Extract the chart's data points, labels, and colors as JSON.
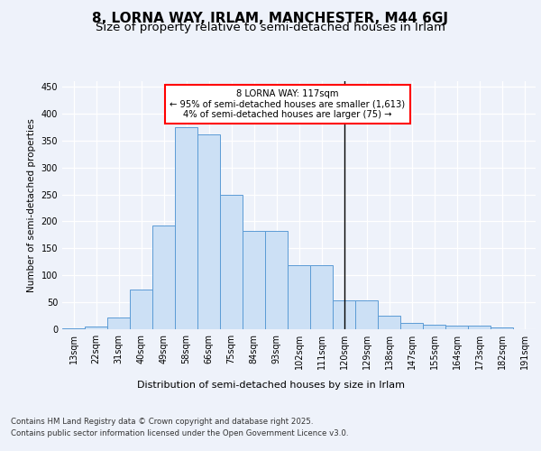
{
  "title": "8, LORNA WAY, IRLAM, MANCHESTER, M44 6GJ",
  "subtitle": "Size of property relative to semi-detached houses in Irlam",
  "xlabel": "Distribution of semi-detached houses by size in Irlam",
  "ylabel": "Number of semi-detached properties",
  "bin_labels": [
    "13sqm",
    "22sqm",
    "31sqm",
    "40sqm",
    "49sqm",
    "58sqm",
    "66sqm",
    "75sqm",
    "84sqm",
    "93sqm",
    "102sqm",
    "111sqm",
    "120sqm",
    "129sqm",
    "138sqm",
    "147sqm",
    "155sqm",
    "164sqm",
    "173sqm",
    "182sqm",
    "191sqm"
  ],
  "bar_heights": [
    2,
    5,
    22,
    73,
    193,
    375,
    362,
    249,
    183,
    183,
    119,
    119,
    53,
    53,
    25,
    12,
    8,
    6,
    6,
    3,
    0
  ],
  "bar_color": "#cce0f5",
  "bar_edge_color": "#5b9bd5",
  "vline_x": 12,
  "vline_color": "black",
  "annotation_title": "8 LORNA WAY: 117sqm",
  "annotation_line1": "← 95% of semi-detached houses are smaller (1,613)",
  "annotation_line2": "4% of semi-detached houses are larger (75) →",
  "annotation_box_color": "white",
  "annotation_box_edge_color": "red",
  "ylim": [
    0,
    460
  ],
  "yticks": [
    0,
    50,
    100,
    150,
    200,
    250,
    300,
    350,
    400,
    450
  ],
  "background_color": "#eef2fa",
  "footer_line1": "Contains HM Land Registry data © Crown copyright and database right 2025.",
  "footer_line2": "Contains public sector information licensed under the Open Government Licence v3.0.",
  "title_fontsize": 11,
  "subtitle_fontsize": 9.5
}
